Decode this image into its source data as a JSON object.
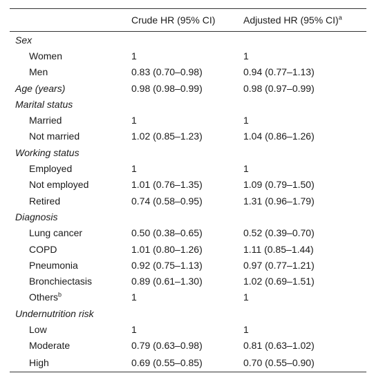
{
  "header": {
    "col_crude": "Crude HR (95% CI)",
    "col_adjusted": "Adjusted HR (95% CI)",
    "col_adjusted_sup": "a"
  },
  "rows": [
    {
      "type": "group",
      "label": "Sex",
      "crude": "",
      "adjusted": ""
    },
    {
      "type": "item",
      "label": "Women",
      "crude": "1",
      "adjusted": "1"
    },
    {
      "type": "item",
      "label": "Men",
      "crude": "0.83 (0.70–0.98)",
      "adjusted": "0.94 (0.77–1.13)"
    },
    {
      "type": "group",
      "label": "Age (years)",
      "crude": "0.98 (0.98–0.99)",
      "adjusted": "0.98 (0.97–0.99)"
    },
    {
      "type": "group",
      "label": "Marital status",
      "crude": "",
      "adjusted": ""
    },
    {
      "type": "item",
      "label": "Married",
      "crude": "1",
      "adjusted": "1"
    },
    {
      "type": "item",
      "label": "Not married",
      "crude": "1.02 (0.85–1.23)",
      "adjusted": "1.04 (0.86–1.26)"
    },
    {
      "type": "group",
      "label": "Working status",
      "crude": "",
      "adjusted": ""
    },
    {
      "type": "item",
      "label": "Employed",
      "crude": "1",
      "adjusted": "1"
    },
    {
      "type": "item",
      "label": "Not employed",
      "crude": "1.01 (0.76–1.35)",
      "adjusted": "1.09 (0.79–1.50)"
    },
    {
      "type": "item",
      "label": "Retired",
      "crude": "0.74 (0.58–0.95)",
      "adjusted": "1.31 (0.96–1.79)"
    },
    {
      "type": "group",
      "label": "Diagnosis",
      "crude": "",
      "adjusted": ""
    },
    {
      "type": "item",
      "label": "Lung cancer",
      "crude": "0.50 (0.38–0.65)",
      "adjusted": "0.52 (0.39–0.70)"
    },
    {
      "type": "item",
      "label": "COPD",
      "crude": "1.01 (0.80–1.26)",
      "adjusted": "1.11 (0.85–1.44)"
    },
    {
      "type": "item",
      "label": "Pneumonia",
      "crude": "0.92 (0.75–1.13)",
      "adjusted": "0.97 (0.77–1.21)"
    },
    {
      "type": "item",
      "label": "Bronchiectasis",
      "crude": "0.89 (0.61–1.30)",
      "adjusted": "1.02 (0.69–1.51)"
    },
    {
      "type": "item",
      "label": "Others",
      "label_sup": "b",
      "crude": "1",
      "adjusted": "1"
    },
    {
      "type": "group",
      "label": "Undernutrition risk",
      "crude": "",
      "adjusted": ""
    },
    {
      "type": "item",
      "label": "Low",
      "crude": "1",
      "adjusted": "1"
    },
    {
      "type": "item",
      "label": "Moderate",
      "crude": "0.79 (0.63–0.98)",
      "adjusted": "0.81 (0.63–1.02)"
    },
    {
      "type": "item",
      "label": "High",
      "crude": "0.69 (0.55–0.85)",
      "adjusted": "0.70 (0.55–0.90)"
    }
  ]
}
